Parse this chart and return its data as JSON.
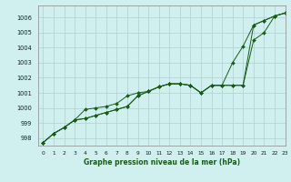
{
  "title": "Graphe pression niveau de la mer (hPa)",
  "bg_color": "#cff0ee",
  "grid_color": "#b0d0d0",
  "line_color": "#1a5c1a",
  "marker_color": "#1a5c1a",
  "xlim": [
    -0.5,
    23
  ],
  "ylim": [
    997.5,
    1006.8
  ],
  "yticks": [
    998,
    999,
    1000,
    1001,
    1002,
    1003,
    1004,
    1005,
    1006
  ],
  "xticks": [
    0,
    1,
    2,
    3,
    4,
    5,
    6,
    7,
    8,
    9,
    10,
    11,
    12,
    13,
    14,
    15,
    16,
    17,
    18,
    19,
    20,
    21,
    22,
    23
  ],
  "series": [
    [
      997.7,
      998.3,
      998.7,
      999.2,
      999.3,
      999.5,
      999.7,
      999.9,
      1000.1,
      1000.8,
      1001.1,
      1001.4,
      1001.6,
      1001.6,
      1001.5,
      1001.0,
      1001.5,
      1001.5,
      1003.0,
      1004.1,
      1005.5,
      1005.8,
      1006.1,
      1006.3
    ],
    [
      997.7,
      998.3,
      998.7,
      999.2,
      999.3,
      999.5,
      999.7,
      999.9,
      1000.1,
      1000.8,
      1001.1,
      1001.4,
      1001.6,
      1001.6,
      1001.5,
      1001.0,
      1001.5,
      1001.5,
      1001.5,
      1001.5,
      1005.5,
      1005.8,
      1006.1,
      1006.3
    ],
    [
      997.7,
      998.3,
      998.7,
      999.2,
      999.9,
      1000.0,
      1000.1,
      1000.3,
      1000.8,
      1001.0,
      1001.1,
      1001.4,
      1001.6,
      1001.6,
      1001.5,
      1001.0,
      1001.5,
      1001.5,
      1001.5,
      1001.5,
      1004.5,
      1005.0,
      1006.1,
      1006.3
    ]
  ]
}
